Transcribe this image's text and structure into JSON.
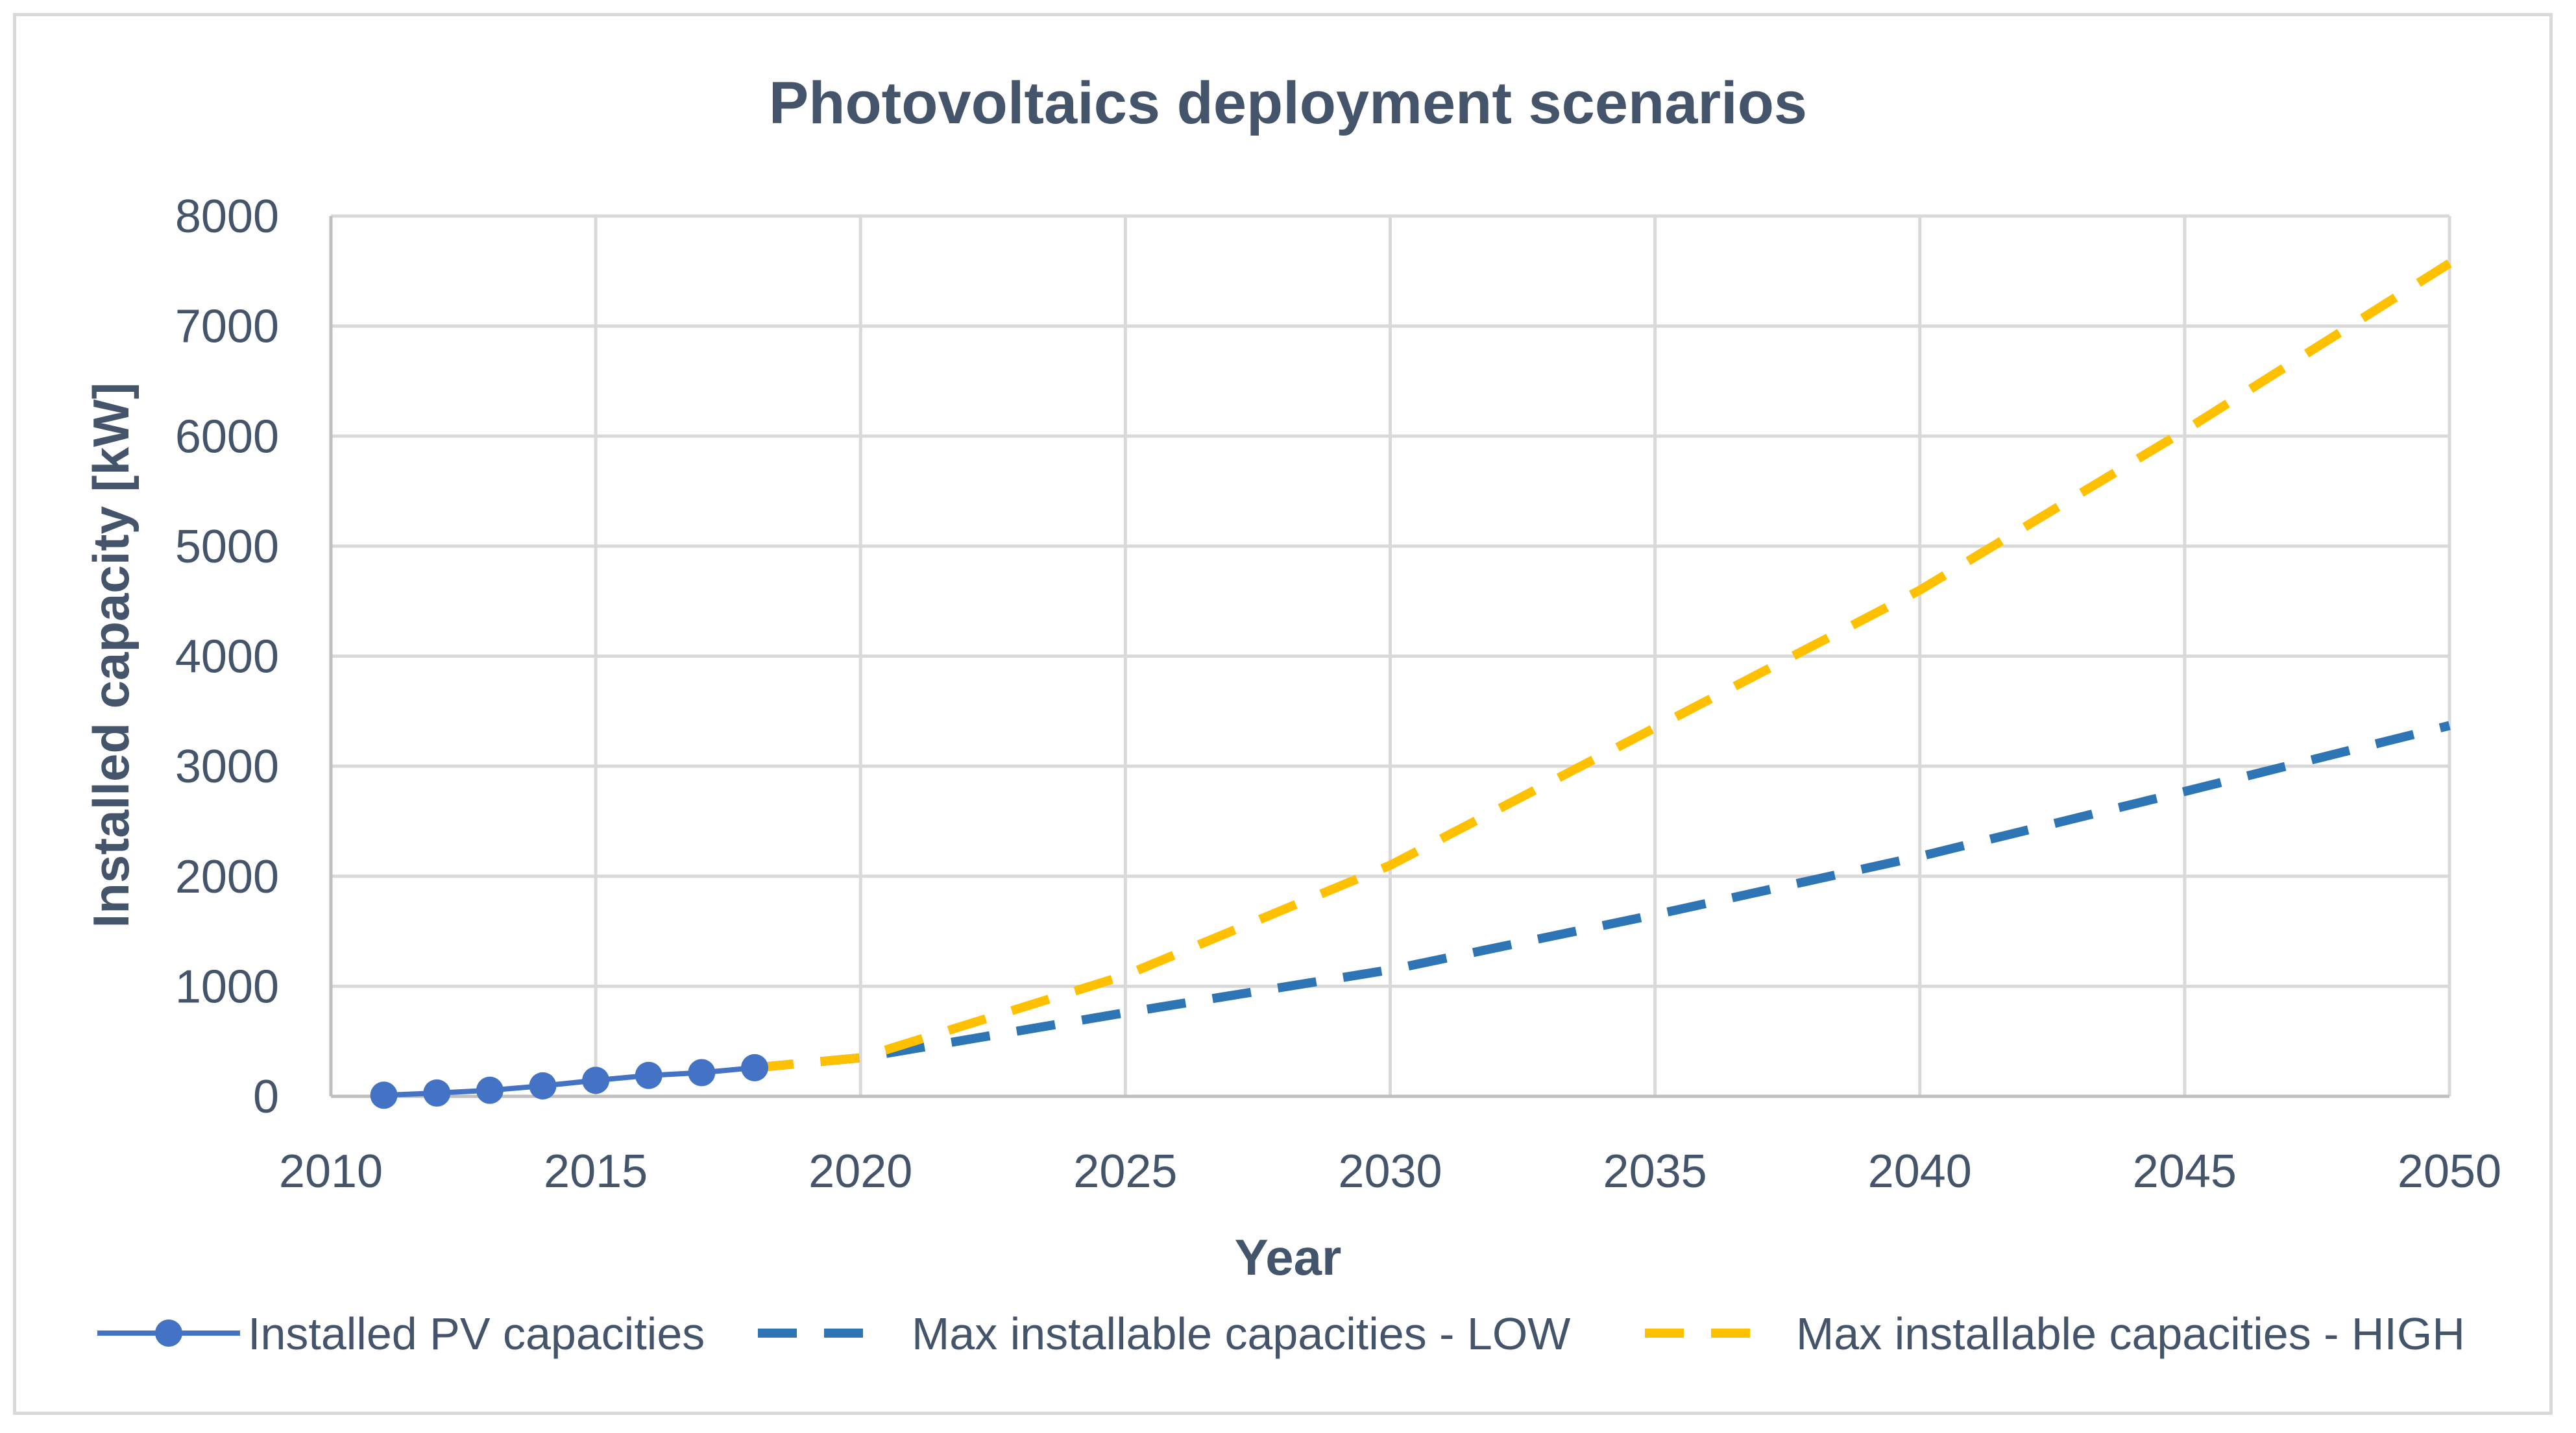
{
  "chart_data": {
    "type": "line",
    "title": "Photovoltaics deployment scenarios",
    "xlabel": "Year",
    "ylabel": "Installed capacity [kW]",
    "xlim": [
      2010,
      2050
    ],
    "ylim": [
      0,
      8000
    ],
    "xticks": [
      2010,
      2015,
      2020,
      2025,
      2030,
      2035,
      2040,
      2045,
      2050
    ],
    "yticks": [
      0,
      1000,
      2000,
      3000,
      4000,
      5000,
      6000,
      7000,
      8000
    ],
    "grid": true,
    "legend_position": "bottom",
    "series": [
      {
        "name": "Installed PV capacities",
        "style": "solid-markers",
        "color": "#4472c4",
        "x": [
          2011,
          2012,
          2013,
          2014,
          2015,
          2016,
          2017,
          2018
        ],
        "y": [
          10,
          30,
          55,
          95,
          145,
          190,
          215,
          260
        ]
      },
      {
        "name": "Max installable capacities - LOW",
        "style": "dashed",
        "color": "#2e75b6",
        "x": [
          2018,
          2020,
          2025,
          2030,
          2035,
          2040,
          2045,
          2050
        ],
        "y": [
          260,
          350,
          760,
          1150,
          1650,
          2180,
          2770,
          3370
        ]
      },
      {
        "name": "Max installable capacities - HIGH",
        "style": "dashed",
        "color": "#ffc000",
        "x": [
          2018,
          2020,
          2025,
          2030,
          2035,
          2040,
          2045,
          2050
        ],
        "y": [
          260,
          350,
          1100,
          2100,
          3350,
          4600,
          6050,
          7570
        ]
      }
    ]
  }
}
